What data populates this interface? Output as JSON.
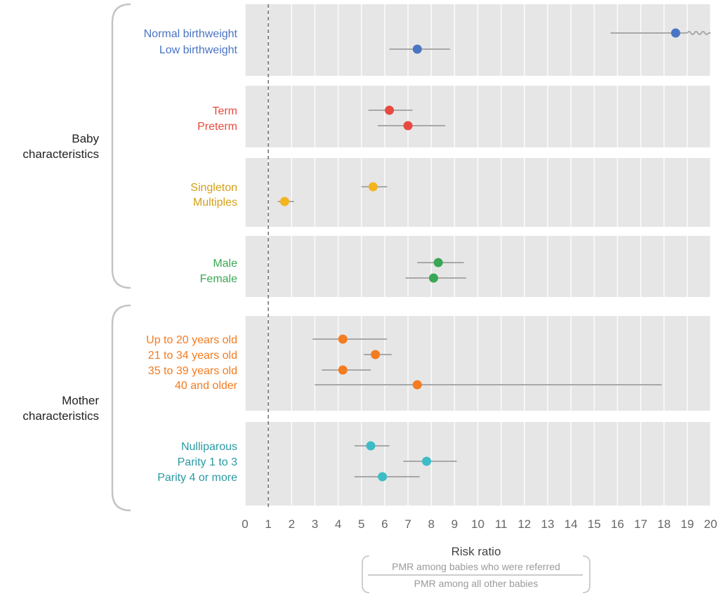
{
  "chart_data": {
    "type": "forest",
    "xlabel": "Risk ratio",
    "xlabel_formula": {
      "numerator": "PMR among babies who were referred",
      "denominator": "PMR among all other babies"
    },
    "xlim": [
      0,
      20
    ],
    "xticks": [
      0,
      1,
      2,
      3,
      4,
      5,
      6,
      7,
      8,
      9,
      10,
      11,
      12,
      13,
      14,
      15,
      16,
      17,
      18,
      19,
      20
    ],
    "reference_line": 1,
    "grid": true,
    "groups": [
      {
        "name": "Baby\ncharacteristics",
        "panels": [
          0,
          1,
          2,
          3
        ]
      },
      {
        "name": "Mother\ncharacteristics",
        "panels": [
          4,
          5
        ]
      }
    ],
    "panels": [
      {
        "color": "#4a74c4",
        "rows": [
          {
            "label": "Normal birthweight",
            "estimate": 18.5,
            "lower": 15.7,
            "upper": 20,
            "truncated": true
          },
          {
            "label": "Low birthweight",
            "estimate": 7.4,
            "lower": 6.2,
            "upper": 8.8
          }
        ]
      },
      {
        "color": "#e84a3f",
        "rows": [
          {
            "label": "Term",
            "estimate": 6.2,
            "lower": 5.3,
            "upper": 7.2
          },
          {
            "label": "Preterm",
            "estimate": 7.0,
            "lower": 5.7,
            "upper": 8.6
          }
        ]
      },
      {
        "color": "#f2b51f",
        "text_color": "#d4a017",
        "rows": [
          {
            "label": "Singleton",
            "estimate": 5.5,
            "lower": 5.0,
            "upper": 6.1
          },
          {
            "label": "Multiples",
            "estimate": 1.7,
            "lower": 1.4,
            "upper": 2.1
          }
        ]
      },
      {
        "color": "#3aa755",
        "rows": [
          {
            "label": "Male",
            "estimate": 8.3,
            "lower": 7.4,
            "upper": 9.4
          },
          {
            "label": "Female",
            "estimate": 8.1,
            "lower": 6.9,
            "upper": 9.5
          }
        ]
      },
      {
        "color": "#f47b20",
        "rows": [
          {
            "label": "Up to 20 years old",
            "estimate": 4.2,
            "lower": 2.9,
            "upper": 6.1
          },
          {
            "label": "21 to 34 years old",
            "estimate": 5.6,
            "lower": 5.1,
            "upper": 6.3
          },
          {
            "label": "35 to 39 years old",
            "estimate": 4.2,
            "lower": 3.3,
            "upper": 5.4
          },
          {
            "label": "40 and older",
            "estimate": 7.4,
            "lower": 3.0,
            "upper": 17.9
          }
        ]
      },
      {
        "color": "#3dbcc6",
        "text_color": "#2a9aa3",
        "rows": [
          {
            "label": "Nulliparous",
            "estimate": 5.4,
            "lower": 4.7,
            "upper": 6.2
          },
          {
            "label": "Parity 1 to 3",
            "estimate": 7.8,
            "lower": 6.8,
            "upper": 9.1
          },
          {
            "label": "Parity 4 or more",
            "estimate": 5.9,
            "lower": 4.7,
            "upper": 7.5
          }
        ]
      }
    ]
  }
}
